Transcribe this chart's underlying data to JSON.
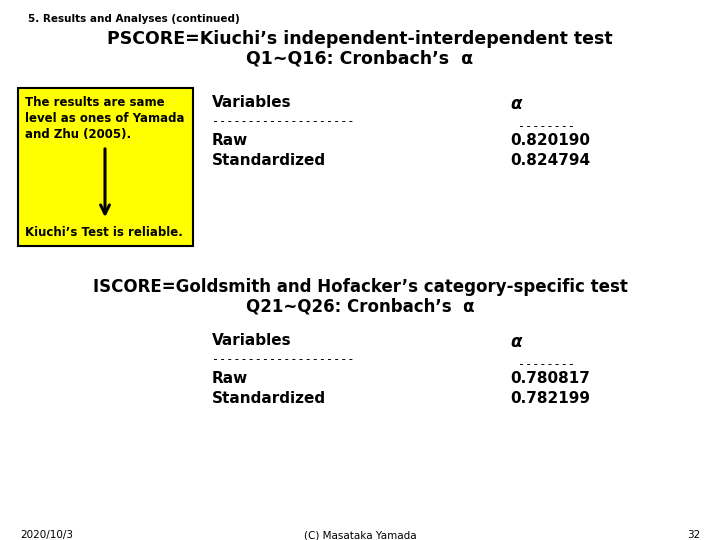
{
  "bg_color": "#ffffff",
  "slide_num": "32",
  "date": "2020/10/3",
  "copyright": "(C) Masataka Yamada",
  "small_title": "5. Results and Analyses (continued)",
  "title_line1": "PSCORE=Kiuchi’s independent-interdependent test",
  "title_line2": "Q1~Q16: Cronbach’s  α",
  "yellow_box_lines": [
    "The results are same",
    "level as ones of Yamada",
    "and Zhu (2005)."
  ],
  "yellow_box_bottom": "Kiuchi’s Test is reliable.",
  "yellow_bg": "#ffff00",
  "table1_col1_header": "Variables",
  "table1_col2_header": "α",
  "table1_rows": [
    [
      "Raw",
      "0.820190"
    ],
    [
      "Standardized",
      "0.824794"
    ]
  ],
  "section2_line1": "ISCORE=Goldsmith and Hofacker’s category-specific test",
  "section2_line2": "Q21~Q26: Cronbach’s  α",
  "table2_col1_header": "Variables",
  "table2_col2_header": "α",
  "table2_rows": [
    [
      "Raw",
      "0.780817"
    ],
    [
      "Standardized",
      "0.782199"
    ]
  ]
}
